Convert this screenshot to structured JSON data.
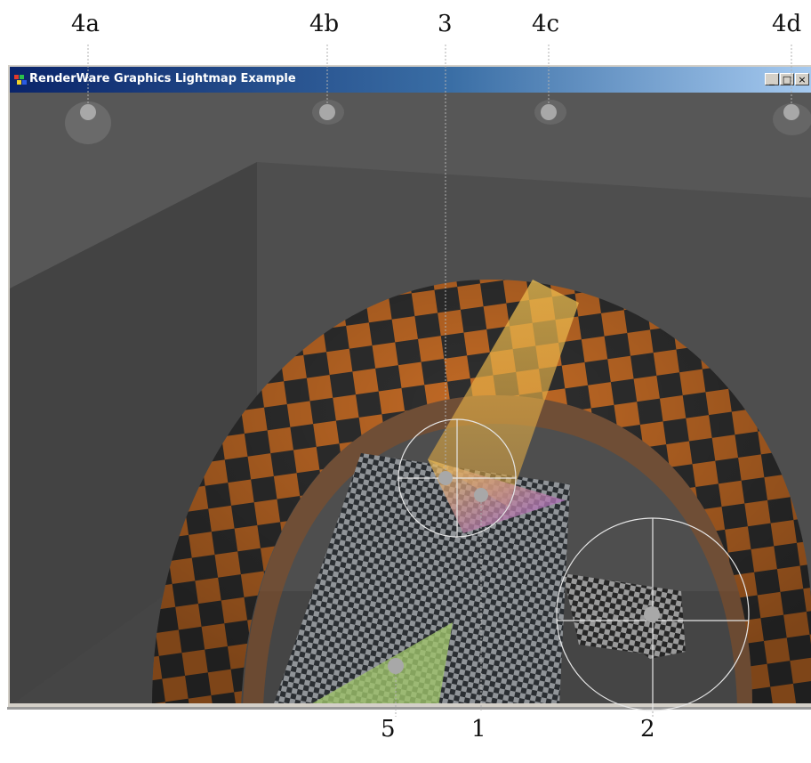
{
  "window": {
    "title": "RenderWare Graphics Lightmap Example",
    "buttons": {
      "minimize": "_",
      "maximize": "□",
      "close": "×"
    }
  },
  "callouts": {
    "top": [
      "4a",
      "4b",
      "3",
      "4c",
      "4d"
    ],
    "bottom": [
      "5",
      "1",
      "2"
    ]
  },
  "colors": {
    "title_gradient_start": "#0a246a",
    "title_gradient_end": "#a6caf0",
    "checker_orange": "#c26a25",
    "checker_dark": "#2f2f2f",
    "spot_light_yellow": "#e8b23a",
    "area_light_green": "#9fc46a",
    "light_marker": "#a8a8a8"
  },
  "icons": [
    "app-icon",
    "minimize-icon",
    "maximize-icon",
    "close-icon"
  ]
}
